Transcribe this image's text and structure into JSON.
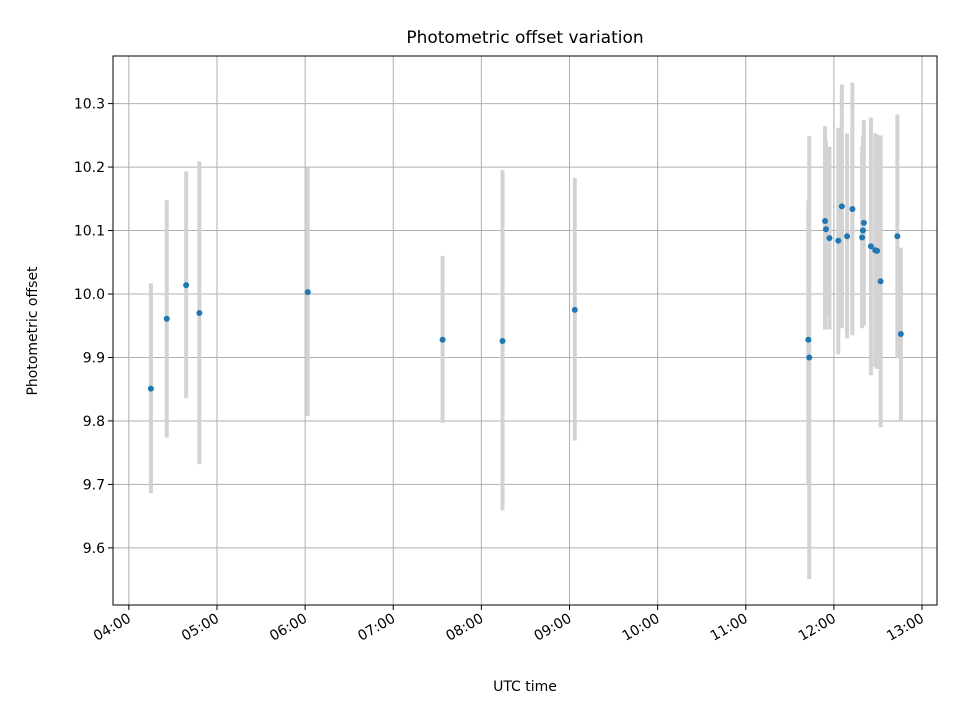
{
  "chart_data": {
    "type": "scatter",
    "title": "Photometric offset variation",
    "xlabel": "UTC time",
    "ylabel": "Photometric offset",
    "x_unit": "hours UTC",
    "xlim": [
      3.82,
      13.17
    ],
    "ylim": [
      9.51,
      10.375
    ],
    "grid": true,
    "x_ticks": [
      {
        "value": 4,
        "label": "04:00"
      },
      {
        "value": 5,
        "label": "05:00"
      },
      {
        "value": 6,
        "label": "06:00"
      },
      {
        "value": 7,
        "label": "07:00"
      },
      {
        "value": 8,
        "label": "08:00"
      },
      {
        "value": 9,
        "label": "09:00"
      },
      {
        "value": 10,
        "label": "10:00"
      },
      {
        "value": 11,
        "label": "11:00"
      },
      {
        "value": 12,
        "label": "12:00"
      },
      {
        "value": 13,
        "label": "13:00"
      }
    ],
    "y_ticks": [
      {
        "value": 9.6,
        "label": "9.6"
      },
      {
        "value": 9.7,
        "label": "9.7"
      },
      {
        "value": 9.8,
        "label": "9.8"
      },
      {
        "value": 9.9,
        "label": "9.9"
      },
      {
        "value": 10.0,
        "label": "10.0"
      },
      {
        "value": 10.1,
        "label": "10.1"
      },
      {
        "value": 10.2,
        "label": "10.2"
      },
      {
        "value": 10.3,
        "label": "10.3"
      }
    ],
    "colors": {
      "marker": "#1f77b4",
      "errorbar": "#d3d3d3",
      "grid": "#b0b0b0"
    },
    "points": [
      {
        "x": 4.25,
        "y": 9.851,
        "lo": 9.686,
        "hi": 10.017
      },
      {
        "x": 4.43,
        "y": 9.961,
        "lo": 9.774,
        "hi": 10.148
      },
      {
        "x": 4.65,
        "y": 10.014,
        "lo": 9.836,
        "hi": 10.193
      },
      {
        "x": 4.8,
        "y": 9.97,
        "lo": 9.732,
        "hi": 10.209
      },
      {
        "x": 6.03,
        "y": 10.003,
        "lo": 9.808,
        "hi": 10.199
      },
      {
        "x": 7.56,
        "y": 9.928,
        "lo": 9.797,
        "hi": 10.06
      },
      {
        "x": 8.24,
        "y": 9.926,
        "lo": 9.659,
        "hi": 10.195
      },
      {
        "x": 9.06,
        "y": 9.975,
        "lo": 9.769,
        "hi": 10.183
      },
      {
        "x": 11.71,
        "y": 9.928,
        "lo": 9.701,
        "hi": 10.147
      },
      {
        "x": 11.72,
        "y": 9.9,
        "lo": 9.551,
        "hi": 10.249
      },
      {
        "x": 11.9,
        "y": 10.115,
        "lo": 9.944,
        "hi": 10.265
      },
      {
        "x": 11.91,
        "y": 10.102,
        "lo": 9.963,
        "hi": 10.241
      },
      {
        "x": 11.95,
        "y": 10.088,
        "lo": 9.944,
        "hi": 10.232
      },
      {
        "x": 12.05,
        "y": 10.084,
        "lo": 9.905,
        "hi": 10.262
      },
      {
        "x": 12.09,
        "y": 10.138,
        "lo": 9.946,
        "hi": 10.33
      },
      {
        "x": 12.15,
        "y": 10.091,
        "lo": 9.93,
        "hi": 10.253
      },
      {
        "x": 12.21,
        "y": 10.134,
        "lo": 9.935,
        "hi": 10.333
      },
      {
        "x": 12.32,
        "y": 10.089,
        "lo": 9.946,
        "hi": 10.233
      },
      {
        "x": 12.33,
        "y": 10.1,
        "lo": 9.95,
        "hi": 10.25
      },
      {
        "x": 12.34,
        "y": 10.112,
        "lo": 9.95,
        "hi": 10.274
      },
      {
        "x": 12.42,
        "y": 10.075,
        "lo": 9.872,
        "hi": 10.278
      },
      {
        "x": 12.47,
        "y": 10.069,
        "lo": 9.885,
        "hi": 10.253
      },
      {
        "x": 12.49,
        "y": 10.068,
        "lo": 9.882,
        "hi": 10.251
      },
      {
        "x": 12.53,
        "y": 10.02,
        "lo": 9.79,
        "hi": 10.25
      },
      {
        "x": 12.72,
        "y": 10.091,
        "lo": 9.899,
        "hi": 10.283
      },
      {
        "x": 12.76,
        "y": 9.937,
        "lo": 9.801,
        "hi": 10.073
      }
    ]
  }
}
